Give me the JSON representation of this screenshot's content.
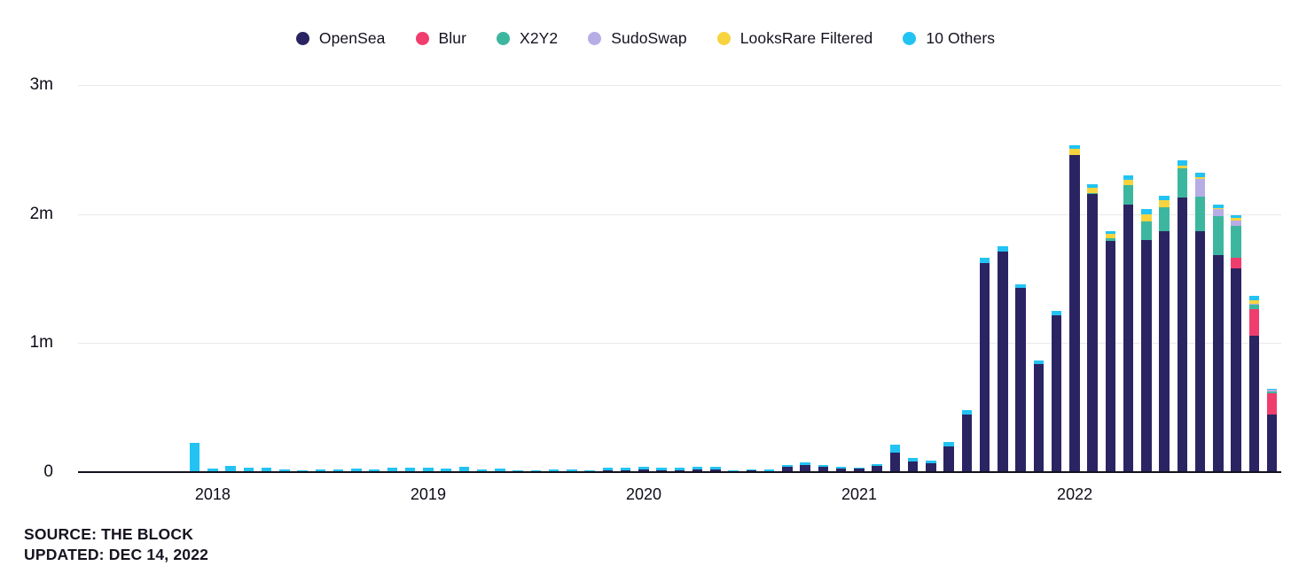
{
  "source": {
    "line1": "SOURCE: THE BLOCK",
    "line2": "UPDATED: DEC 14, 2022"
  },
  "chart_data": {
    "type": "bar",
    "stacked": true,
    "values_unit": "thousands",
    "legend_position": "top-center",
    "y_axis": {
      "max": 3000,
      "ticks": [
        {
          "label": "3m",
          "value": 3000
        },
        {
          "label": "2m",
          "value": 2000
        },
        {
          "label": "1m",
          "value": 1000
        },
        {
          "label": "0",
          "value": 0
        }
      ]
    },
    "x_axis": {
      "ticks": [
        {
          "label": "2018",
          "month_index": 7
        },
        {
          "label": "2019",
          "month_index": 19
        },
        {
          "label": "2020",
          "month_index": 31
        },
        {
          "label": "2021",
          "month_index": 43
        },
        {
          "label": "2022",
          "month_index": 55
        }
      ]
    },
    "series": [
      {
        "name": "OpenSea",
        "color": "#2b2463"
      },
      {
        "name": "Blur",
        "color": "#ef3e6e"
      },
      {
        "name": "X2Y2",
        "color": "#3db6a0"
      },
      {
        "name": "SudoSwap",
        "color": "#b6ade5"
      },
      {
        "name": "LooksRare Filtered",
        "color": "#f7d33e"
      },
      {
        "name": "10 Others",
        "color": "#22c3f3"
      }
    ],
    "months": [
      {
        "m": "2017-06",
        "v": [
          0,
          0,
          0,
          0,
          0,
          2
        ]
      },
      {
        "m": "2017-07",
        "v": [
          0,
          0,
          0,
          0,
          0,
          3
        ]
      },
      {
        "m": "2017-08",
        "v": [
          0,
          0,
          0,
          0,
          0,
          2
        ]
      },
      {
        "m": "2017-09",
        "v": [
          0,
          0,
          0,
          0,
          0,
          3
        ]
      },
      {
        "m": "2017-10",
        "v": [
          0,
          0,
          0,
          0,
          0,
          4
        ]
      },
      {
        "m": "2017-11",
        "v": [
          0,
          0,
          0,
          0,
          0,
          10
        ]
      },
      {
        "m": "2017-12",
        "v": [
          0,
          0,
          0,
          0,
          0,
          230
        ]
      },
      {
        "m": "2018-01",
        "v": [
          2,
          0,
          0,
          0,
          0,
          25
        ]
      },
      {
        "m": "2018-02",
        "v": [
          2,
          0,
          0,
          0,
          0,
          46
        ]
      },
      {
        "m": "2018-03",
        "v": [
          2,
          0,
          0,
          0,
          0,
          32
        ]
      },
      {
        "m": "2018-04",
        "v": [
          3,
          0,
          0,
          0,
          0,
          31
        ]
      },
      {
        "m": "2018-05",
        "v": [
          3,
          0,
          0,
          0,
          0,
          17
        ]
      },
      {
        "m": "2018-06",
        "v": [
          3,
          0,
          0,
          0,
          0,
          11
        ]
      },
      {
        "m": "2018-07",
        "v": [
          4,
          0,
          0,
          0,
          0,
          16
        ]
      },
      {
        "m": "2018-08",
        "v": [
          4,
          0,
          0,
          0,
          0,
          16
        ]
      },
      {
        "m": "2018-09",
        "v": [
          5,
          0,
          0,
          0,
          0,
          22
        ]
      },
      {
        "m": "2018-10",
        "v": [
          5,
          0,
          0,
          0,
          0,
          15
        ]
      },
      {
        "m": "2018-11",
        "v": [
          7,
          0,
          0,
          0,
          0,
          27
        ]
      },
      {
        "m": "2018-12",
        "v": [
          7,
          0,
          0,
          0,
          0,
          27
        ]
      },
      {
        "m": "2019-01",
        "v": [
          8,
          0,
          0,
          0,
          0,
          26
        ]
      },
      {
        "m": "2019-02",
        "v": [
          8,
          0,
          0,
          0,
          0,
          19
        ]
      },
      {
        "m": "2019-03",
        "v": [
          10,
          0,
          0,
          0,
          0,
          30
        ]
      },
      {
        "m": "2019-04",
        "v": [
          8,
          0,
          0,
          0,
          0,
          12
        ]
      },
      {
        "m": "2019-05",
        "v": [
          8,
          0,
          0,
          0,
          0,
          19
        ]
      },
      {
        "m": "2019-06",
        "v": [
          8,
          0,
          0,
          0,
          0,
          6
        ]
      },
      {
        "m": "2019-07",
        "v": [
          6,
          0,
          0,
          0,
          0,
          8
        ]
      },
      {
        "m": "2019-08",
        "v": [
          7,
          0,
          0,
          0,
          0,
          13
        ]
      },
      {
        "m": "2019-09",
        "v": [
          7,
          0,
          0,
          0,
          0,
          13
        ]
      },
      {
        "m": "2019-10",
        "v": [
          6,
          0,
          0,
          0,
          0,
          8
        ]
      },
      {
        "m": "2019-11",
        "v": [
          14,
          0,
          0,
          0,
          0,
          20
        ]
      },
      {
        "m": "2019-12",
        "v": [
          14,
          0,
          0,
          0,
          0,
          20
        ]
      },
      {
        "m": "2020-01",
        "v": [
          20,
          0,
          0,
          0,
          0,
          21
        ]
      },
      {
        "m": "2020-02",
        "v": [
          17,
          0,
          0,
          0,
          0,
          17
        ]
      },
      {
        "m": "2020-03",
        "v": [
          14,
          0,
          0,
          0,
          0,
          20
        ]
      },
      {
        "m": "2020-04",
        "v": [
          20,
          0,
          0,
          0,
          0,
          21
        ]
      },
      {
        "m": "2020-05",
        "v": [
          20,
          0,
          0,
          0,
          0,
          21
        ]
      },
      {
        "m": "2020-06",
        "v": [
          10,
          0,
          0,
          0,
          0,
          4
        ]
      },
      {
        "m": "2020-07",
        "v": [
          16,
          0,
          0,
          0,
          0,
          5
        ]
      },
      {
        "m": "2020-08",
        "v": [
          8,
          0,
          0,
          0,
          0,
          12
        ]
      },
      {
        "m": "2020-09",
        "v": [
          38,
          0,
          0,
          0,
          0,
          17
        ]
      },
      {
        "m": "2020-10",
        "v": [
          55,
          0,
          0,
          0,
          0,
          20
        ]
      },
      {
        "m": "2020-11",
        "v": [
          40,
          0,
          0,
          0,
          0,
          15
        ]
      },
      {
        "m": "2020-12",
        "v": [
          30,
          0,
          0,
          0,
          0,
          11
        ]
      },
      {
        "m": "2021-01",
        "v": [
          25,
          0,
          0,
          0,
          0,
          10
        ]
      },
      {
        "m": "2021-02",
        "v": [
          45,
          0,
          0,
          0,
          0,
          15
        ]
      },
      {
        "m": "2021-03",
        "v": [
          150,
          0,
          0,
          0,
          0,
          62
        ]
      },
      {
        "m": "2021-04",
        "v": [
          85,
          0,
          0,
          0,
          0,
          25
        ]
      },
      {
        "m": "2021-05",
        "v": [
          70,
          0,
          0,
          0,
          0,
          19
        ]
      },
      {
        "m": "2021-06",
        "v": [
          200,
          0,
          0,
          0,
          0,
          32
        ]
      },
      {
        "m": "2021-07",
        "v": [
          445,
          0,
          0,
          0,
          0,
          34
        ]
      },
      {
        "m": "2021-08",
        "v": [
          1620,
          0,
          0,
          0,
          0,
          41
        ]
      },
      {
        "m": "2021-09",
        "v": [
          1710,
          0,
          0,
          0,
          0,
          41
        ]
      },
      {
        "m": "2021-10",
        "v": [
          1425,
          0,
          0,
          0,
          0,
          34
        ]
      },
      {
        "m": "2021-11",
        "v": [
          835,
          0,
          0,
          0,
          0,
          27
        ]
      },
      {
        "m": "2021-12",
        "v": [
          1215,
          0,
          0,
          0,
          0,
          34
        ]
      },
      {
        "m": "2022-01",
        "v": [
          2460,
          0,
          0,
          0,
          45,
          27
        ]
      },
      {
        "m": "2022-02",
        "v": [
          2155,
          0,
          5,
          0,
          45,
          27
        ]
      },
      {
        "m": "2022-03",
        "v": [
          1795,
          0,
          15,
          0,
          40,
          21
        ]
      },
      {
        "m": "2022-04",
        "v": [
          2075,
          0,
          150,
          0,
          42,
          34
        ]
      },
      {
        "m": "2022-05",
        "v": [
          1800,
          0,
          140,
          0,
          55,
          41
        ]
      },
      {
        "m": "2022-06",
        "v": [
          1870,
          0,
          185,
          0,
          50,
          40
        ]
      },
      {
        "m": "2022-07",
        "v": [
          2130,
          0,
          225,
          0,
          21,
          41
        ]
      },
      {
        "m": "2022-08",
        "v": [
          1870,
          0,
          265,
          140,
          10,
          35
        ]
      },
      {
        "m": "2022-09",
        "v": [
          1685,
          0,
          300,
          55,
          8,
          28
        ]
      },
      {
        "m": "2022-10",
        "v": [
          1580,
          80,
          250,
          40,
          20,
          20
        ]
      },
      {
        "m": "2022-11",
        "v": [
          1060,
          200,
          35,
          10,
          27,
          34
        ]
      },
      {
        "m": "2022-12",
        "v": [
          445,
          165,
          15,
          12,
          0,
          6
        ]
      }
    ]
  }
}
